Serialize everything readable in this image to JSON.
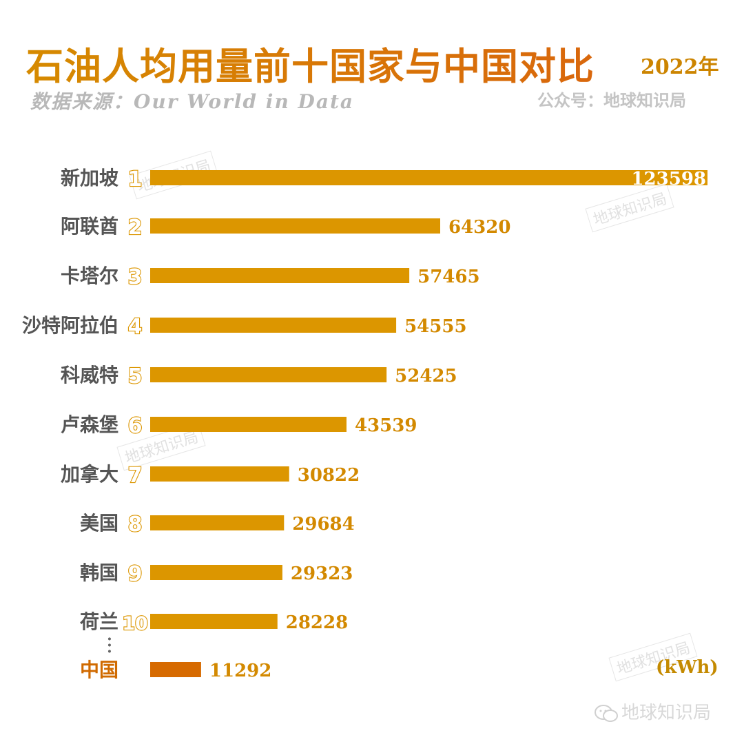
{
  "header": {
    "title": "石油人均用量前十国家与中国对比",
    "year": "2022年",
    "source": "数据来源：Our World in Data",
    "account": "公众号：地球知识局"
  },
  "watermark": "地球知识局",
  "footer_mark": "地球知识局",
  "colors": {
    "bar": "#dc9600",
    "china_bar": "#d66a00",
    "label": "#555555",
    "china_label": "#d06a00",
    "value": "#d38900",
    "rank": "#dc9600"
  },
  "chart_data": {
    "type": "bar",
    "orientation": "horizontal",
    "unit": "(kWh)",
    "categories": [
      "新加坡",
      "阿联酋",
      "卡塔尔",
      "沙特阿拉伯",
      "科威特",
      "卢森堡",
      "加拿大",
      "美国",
      "韩国",
      "荷兰",
      "中国"
    ],
    "ranks": [
      "1",
      "2",
      "3",
      "4",
      "5",
      "6",
      "7",
      "8",
      "9",
      "10",
      ""
    ],
    "values": [
      123598,
      64320,
      57465,
      54555,
      52425,
      43539,
      30822,
      29684,
      29323,
      28228,
      11292
    ],
    "value_labels": [
      "123598",
      "64320",
      "57465",
      "54555",
      "52425",
      "43539",
      "30822",
      "29684",
      "29323",
      "28228",
      "11292"
    ],
    "highlight": "中国",
    "xlim": [
      0,
      123598
    ]
  }
}
